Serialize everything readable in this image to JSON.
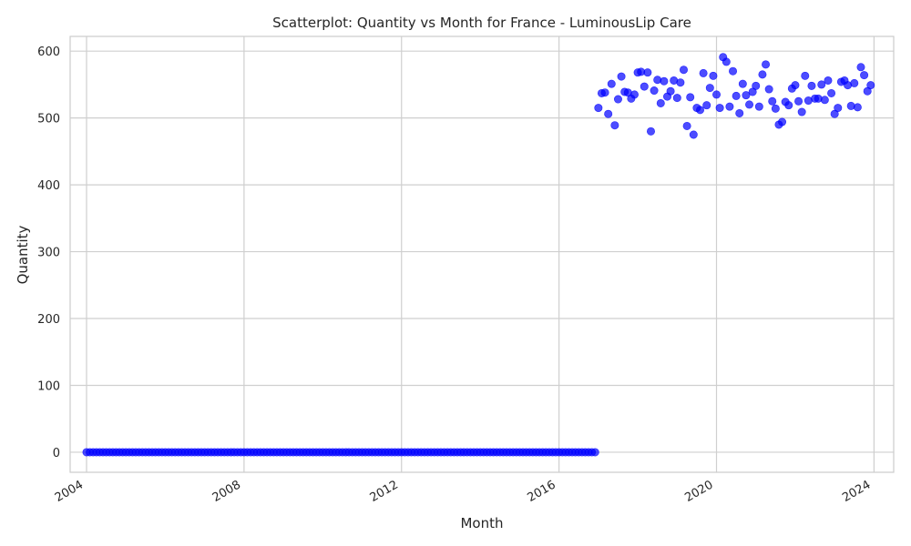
{
  "chart_data": {
    "type": "scatter",
    "title": "Scatterplot: Quantity vs Month for France - LuminousLip Care",
    "xlabel": "Month",
    "ylabel": "Quantity",
    "xlim": [
      "2003-08",
      "2024-07"
    ],
    "ylim": [
      -30,
      622
    ],
    "x_ticks": [
      "2004",
      "2008",
      "2012",
      "2016",
      "2020",
      "2024"
    ],
    "y_ticks": [
      0,
      100,
      200,
      300,
      400,
      500,
      600
    ],
    "grid": true,
    "legend": "none",
    "point_color": "#0000ff",
    "zero_period": {
      "start": "2004-01",
      "end": "2016-12",
      "value": 0
    },
    "points": [
      [
        "2017-01",
        515
      ],
      [
        "2017-02",
        537
      ],
      [
        "2017-03",
        538
      ],
      [
        "2017-04",
        506
      ],
      [
        "2017-05",
        551
      ],
      [
        "2017-06",
        489
      ],
      [
        "2017-07",
        528
      ],
      [
        "2017-08",
        562
      ],
      [
        "2017-09",
        539
      ],
      [
        "2017-10",
        538
      ],
      [
        "2017-11",
        529
      ],
      [
        "2017-12",
        535
      ],
      [
        "2018-01",
        568
      ],
      [
        "2018-02",
        569
      ],
      [
        "2018-03",
        547
      ],
      [
        "2018-04",
        568
      ],
      [
        "2018-05",
        480
      ],
      [
        "2018-06",
        541
      ],
      [
        "2018-07",
        557
      ],
      [
        "2018-08",
        522
      ],
      [
        "2018-09",
        555
      ],
      [
        "2018-10",
        532
      ],
      [
        "2018-11",
        540
      ],
      [
        "2018-12",
        556
      ],
      [
        "2019-01",
        530
      ],
      [
        "2019-02",
        553
      ],
      [
        "2019-03",
        572
      ],
      [
        "2019-04",
        488
      ],
      [
        "2019-05",
        531
      ],
      [
        "2019-06",
        475
      ],
      [
        "2019-07",
        515
      ],
      [
        "2019-08",
        512
      ],
      [
        "2019-09",
        567
      ],
      [
        "2019-10",
        519
      ],
      [
        "2019-11",
        545
      ],
      [
        "2019-12",
        563
      ],
      [
        "2020-01",
        535
      ],
      [
        "2020-02",
        515
      ],
      [
        "2020-03",
        591
      ],
      [
        "2020-04",
        584
      ],
      [
        "2020-05",
        517
      ],
      [
        "2020-06",
        570
      ],
      [
        "2020-07",
        533
      ],
      [
        "2020-08",
        507
      ],
      [
        "2020-09",
        551
      ],
      [
        "2020-10",
        534
      ],
      [
        "2020-11",
        520
      ],
      [
        "2020-12",
        539
      ],
      [
        "2021-01",
        548
      ],
      [
        "2021-02",
        517
      ],
      [
        "2021-03",
        565
      ],
      [
        "2021-04",
        580
      ],
      [
        "2021-05",
        543
      ],
      [
        "2021-06",
        525
      ],
      [
        "2021-07",
        514
      ],
      [
        "2021-08",
        490
      ],
      [
        "2021-09",
        494
      ],
      [
        "2021-10",
        524
      ],
      [
        "2021-11",
        519
      ],
      [
        "2021-12",
        544
      ],
      [
        "2022-01",
        549
      ],
      [
        "2022-02",
        525
      ],
      [
        "2022-03",
        509
      ],
      [
        "2022-04",
        563
      ],
      [
        "2022-05",
        526
      ],
      [
        "2022-06",
        548
      ],
      [
        "2022-07",
        529
      ],
      [
        "2022-08",
        529
      ],
      [
        "2022-09",
        550
      ],
      [
        "2022-10",
        527
      ],
      [
        "2022-11",
        556
      ],
      [
        "2022-12",
        537
      ],
      [
        "2023-01",
        506
      ],
      [
        "2023-02",
        515
      ],
      [
        "2023-03",
        554
      ],
      [
        "2023-04",
        556
      ],
      [
        "2023-05",
        549
      ],
      [
        "2023-06",
        518
      ],
      [
        "2023-07",
        552
      ],
      [
        "2023-08",
        516
      ],
      [
        "2023-09",
        576
      ],
      [
        "2023-10",
        564
      ],
      [
        "2023-11",
        540
      ],
      [
        "2023-12",
        549
      ]
    ]
  }
}
